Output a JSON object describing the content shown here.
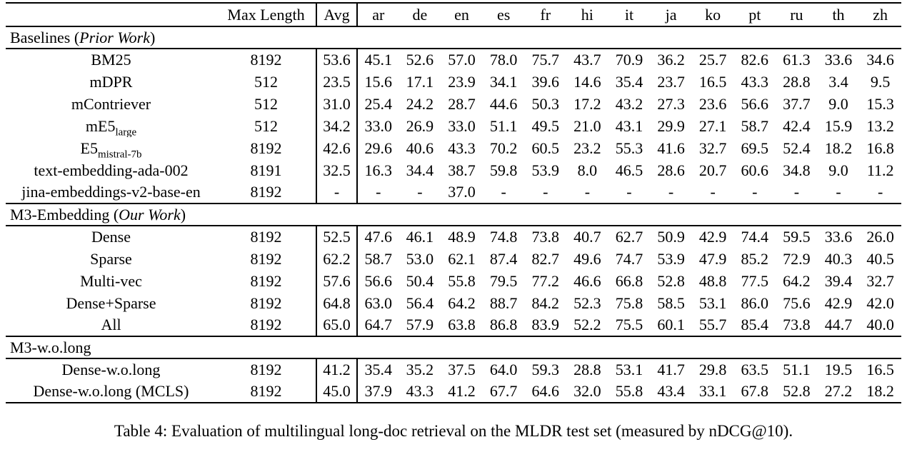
{
  "caption": "Table 4: Evaluation of multilingual long-doc retrieval on the MLDR test set (measured by nDCG@10).",
  "table": {
    "columns": [
      "",
      "Max Length",
      "Avg",
      "ar",
      "de",
      "en",
      "es",
      "fr",
      "hi",
      "it",
      "ja",
      "ko",
      "pt",
      "ru",
      "th",
      "zh"
    ],
    "sections": [
      {
        "label_prefix": "Baselines (",
        "label_italic": "Prior Work",
        "label_suffix": ")",
        "rows": [
          {
            "model": "BM25",
            "model_sub": "",
            "max_length": "8192",
            "values": [
              "53.6",
              "45.1",
              "52.6",
              "57.0",
              "78.0",
              "75.7",
              "43.7",
              "70.9",
              "36.2",
              "25.7",
              "82.6",
              "61.3",
              "33.6",
              "34.6"
            ],
            "bold": []
          },
          {
            "model": "mDPR",
            "model_sub": "",
            "max_length": "512",
            "values": [
              "23.5",
              "15.6",
              "17.1",
              "23.9",
              "34.1",
              "39.6",
              "14.6",
              "35.4",
              "23.7",
              "16.5",
              "43.3",
              "28.8",
              "3.4",
              "9.5"
            ],
            "bold": []
          },
          {
            "model": "mContriever",
            "model_sub": "",
            "max_length": "512",
            "values": [
              "31.0",
              "25.4",
              "24.2",
              "28.7",
              "44.6",
              "50.3",
              "17.2",
              "43.2",
              "27.3",
              "23.6",
              "56.6",
              "37.7",
              "9.0",
              "15.3"
            ],
            "bold": []
          },
          {
            "model": "mE5",
            "model_sub": "large",
            "max_length": "512",
            "values": [
              "34.2",
              "33.0",
              "26.9",
              "33.0",
              "51.1",
              "49.5",
              "21.0",
              "43.1",
              "29.9",
              "27.1",
              "58.7",
              "42.4",
              "15.9",
              "13.2"
            ],
            "bold": []
          },
          {
            "model": "E5",
            "model_sub": "mistral-7b",
            "max_length": "8192",
            "values": [
              "42.6",
              "29.6",
              "40.6",
              "43.3",
              "70.2",
              "60.5",
              "23.2",
              "55.3",
              "41.6",
              "32.7",
              "69.5",
              "52.4",
              "18.2",
              "16.8"
            ],
            "bold": []
          },
          {
            "model": "text-embedding-ada-002",
            "model_sub": "",
            "max_length": "8191",
            "values": [
              "32.5",
              "16.3",
              "34.4",
              "38.7",
              "59.8",
              "53.9",
              "8.0",
              "46.5",
              "28.6",
              "20.7",
              "60.6",
              "34.8",
              "9.0",
              "11.2"
            ],
            "bold": []
          },
          {
            "model": "jina-embeddings-v2-base-en",
            "model_sub": "",
            "max_length": "8192",
            "values": [
              "-",
              "-",
              "-",
              "37.0",
              "-",
              "-",
              "-",
              "-",
              "-",
              "-",
              "-",
              "-",
              "-",
              "-"
            ],
            "bold": []
          }
        ]
      },
      {
        "label_prefix": "M3-Embedding (",
        "label_italic": "Our Work",
        "label_suffix": ")",
        "rows": [
          {
            "model": "Dense",
            "model_sub": "",
            "max_length": "8192",
            "values": [
              "52.5",
              "47.6",
              "46.1",
              "48.9",
              "74.8",
              "73.8",
              "40.7",
              "62.7",
              "50.9",
              "42.9",
              "74.4",
              "59.5",
              "33.6",
              "26.0"
            ],
            "bold": []
          },
          {
            "model": "Sparse",
            "model_sub": "",
            "max_length": "8192",
            "values": [
              "62.2",
              "58.7",
              "53.0",
              "62.1",
              "87.4",
              "82.7",
              "49.6",
              "74.7",
              "53.9",
              "47.9",
              "85.2",
              "72.9",
              "40.3",
              "40.5"
            ],
            "bold": []
          },
          {
            "model": "Multi-vec",
            "model_sub": "",
            "max_length": "8192",
            "values": [
              "57.6",
              "56.6",
              "50.4",
              "55.8",
              "79.5",
              "77.2",
              "46.6",
              "66.8",
              "52.8",
              "48.8",
              "77.5",
              "64.2",
              "39.4",
              "32.7"
            ],
            "bold": []
          },
          {
            "model": "Dense+Sparse",
            "model_sub": "",
            "max_length": "8192",
            "values": [
              "64.8",
              "63.0",
              "56.4",
              "64.2",
              "88.7",
              "84.2",
              "52.3",
              "75.8",
              "58.5",
              "53.1",
              "86.0",
              "75.6",
              "42.9",
              "42.0"
            ],
            "bold": [
              3,
              4,
              5,
              6,
              7,
              10,
              11,
              13
            ]
          },
          {
            "model": "All",
            "model_sub": "",
            "max_length": "8192",
            "values": [
              "65.0",
              "64.7",
              "57.9",
              "63.8",
              "86.8",
              "83.9",
              "52.2",
              "75.5",
              "60.1",
              "55.7",
              "85.4",
              "73.8",
              "44.7",
              "40.0"
            ],
            "bold": [
              0,
              1,
              2,
              8,
              9,
              12
            ]
          }
        ]
      },
      {
        "label_prefix": "M3-w.o.long",
        "label_italic": "",
        "label_suffix": "",
        "rows": [
          {
            "model": "Dense-w.o.long",
            "model_sub": "",
            "max_length": "8192",
            "values": [
              "41.2",
              "35.4",
              "35.2",
              "37.5",
              "64.0",
              "59.3",
              "28.8",
              "53.1",
              "41.7",
              "29.8",
              "63.5",
              "51.1",
              "19.5",
              "16.5"
            ],
            "bold": []
          },
          {
            "model": "Dense-w.o.long (MCLS)",
            "model_sub": "",
            "max_length": "8192",
            "values": [
              "45.0",
              "37.9",
              "43.3",
              "41.2",
              "67.7",
              "64.6",
              "32.0",
              "55.8",
              "43.4",
              "33.1",
              "67.8",
              "52.8",
              "27.2",
              "18.2"
            ],
            "bold": []
          }
        ]
      }
    ]
  }
}
